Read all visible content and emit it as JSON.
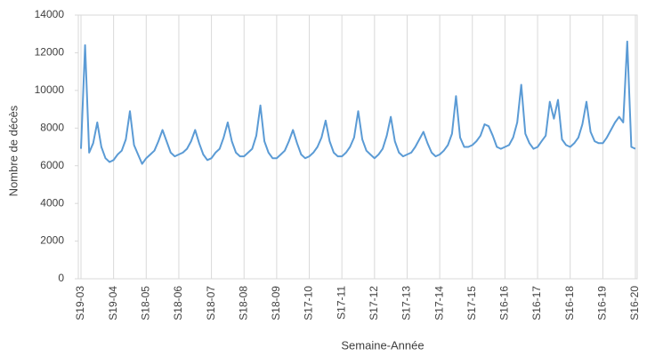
{
  "chart_data": {
    "type": "line",
    "y_label": "Nombre de décès",
    "x_label": "Semaine-Année",
    "categories": [
      "S19-03",
      null,
      null,
      null,
      null,
      null,
      null,
      null,
      "S19-04",
      null,
      null,
      null,
      null,
      null,
      null,
      null,
      "S18-05",
      null,
      null,
      null,
      null,
      null,
      null,
      null,
      "S18-06",
      null,
      null,
      null,
      null,
      null,
      null,
      null,
      "S18-07",
      null,
      null,
      null,
      null,
      null,
      null,
      null,
      "S18-08",
      null,
      null,
      null,
      null,
      null,
      null,
      null,
      "S18-09",
      null,
      null,
      null,
      null,
      null,
      null,
      null,
      "S17-10",
      null,
      null,
      null,
      null,
      null,
      null,
      null,
      "S17-11",
      null,
      null,
      null,
      null,
      null,
      null,
      null,
      "S17-12",
      null,
      null,
      null,
      null,
      null,
      null,
      null,
      "S17-13",
      null,
      null,
      null,
      null,
      null,
      null,
      null,
      "S17-14",
      null,
      null,
      null,
      null,
      null,
      null,
      null,
      "S17-15",
      null,
      null,
      null,
      null,
      null,
      null,
      null,
      "S16-16",
      null,
      null,
      null,
      null,
      null,
      null,
      null,
      "S16-17",
      null,
      null,
      null,
      null,
      null,
      null,
      null,
      "S16-18",
      null,
      null,
      null,
      null,
      null,
      null,
      null,
      "S16-19",
      null,
      null,
      null,
      null,
      null,
      null,
      null,
      "S16-20"
    ],
    "series": [
      {
        "name": "Décès",
        "color": "#5b9bd5",
        "values": [
          6900,
          12400,
          6700,
          7200,
          8300,
          7000,
          6400,
          6200,
          6300,
          6600,
          6800,
          7400,
          8900,
          7100,
          6600,
          6100,
          6400,
          6600,
          6800,
          7300,
          7900,
          7300,
          6700,
          6500,
          6600,
          6700,
          6900,
          7300,
          7900,
          7200,
          6600,
          6300,
          6400,
          6700,
          6900,
          7500,
          8300,
          7300,
          6700,
          6500,
          6500,
          6700,
          6900,
          7600,
          9200,
          7300,
          6700,
          6400,
          6400,
          6600,
          6800,
          7300,
          7900,
          7200,
          6600,
          6400,
          6500,
          6700,
          7000,
          7500,
          8400,
          7300,
          6700,
          6500,
          6500,
          6700,
          7000,
          7500,
          8900,
          7400,
          6800,
          6600,
          6400,
          6600,
          6900,
          7600,
          8600,
          7300,
          6700,
          6500,
          6600,
          6700,
          7000,
          7400,
          7800,
          7200,
          6700,
          6500,
          6600,
          6800,
          7100,
          7700,
          9700,
          7500,
          7000,
          7000,
          7100,
          7300,
          7600,
          8200,
          8100,
          7600,
          7000,
          6900,
          7000,
          7100,
          7500,
          8300,
          10300,
          7700,
          7200,
          6900,
          7000,
          7300,
          7600,
          9400,
          8500,
          9500,
          7400,
          7100,
          7000,
          7200,
          7500,
          8200,
          9400,
          7800,
          7300,
          7200,
          7200,
          7500,
          7900,
          8300,
          8600,
          8300,
          12600,
          7000,
          6900
        ]
      }
    ],
    "ylim": [
      0,
      14000
    ],
    "yticks": [
      0,
      2000,
      4000,
      6000,
      8000,
      10000,
      12000,
      14000
    ]
  }
}
